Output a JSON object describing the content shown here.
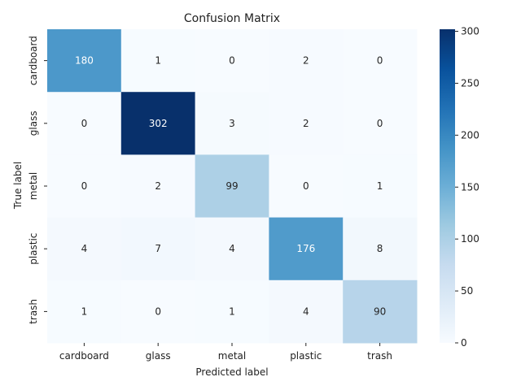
{
  "chart_data": {
    "type": "heatmap",
    "title": "Confusion Matrix",
    "xlabel": "Predicted label",
    "ylabel": "True label",
    "x_categories": [
      "cardboard",
      "glass",
      "metal",
      "plastic",
      "trash"
    ],
    "y_categories": [
      "cardboard",
      "glass",
      "metal",
      "plastic",
      "trash"
    ],
    "values": [
      [
        180,
        1,
        0,
        2,
        0
      ],
      [
        0,
        302,
        3,
        2,
        0
      ],
      [
        0,
        2,
        99,
        0,
        1
      ],
      [
        4,
        7,
        4,
        176,
        8
      ],
      [
        1,
        0,
        1,
        4,
        90
      ]
    ],
    "colormap": "Blues",
    "colorbar": {
      "min": 0,
      "max": 302,
      "ticks": [
        0,
        50,
        100,
        150,
        200,
        250,
        300
      ]
    },
    "grid": false
  }
}
